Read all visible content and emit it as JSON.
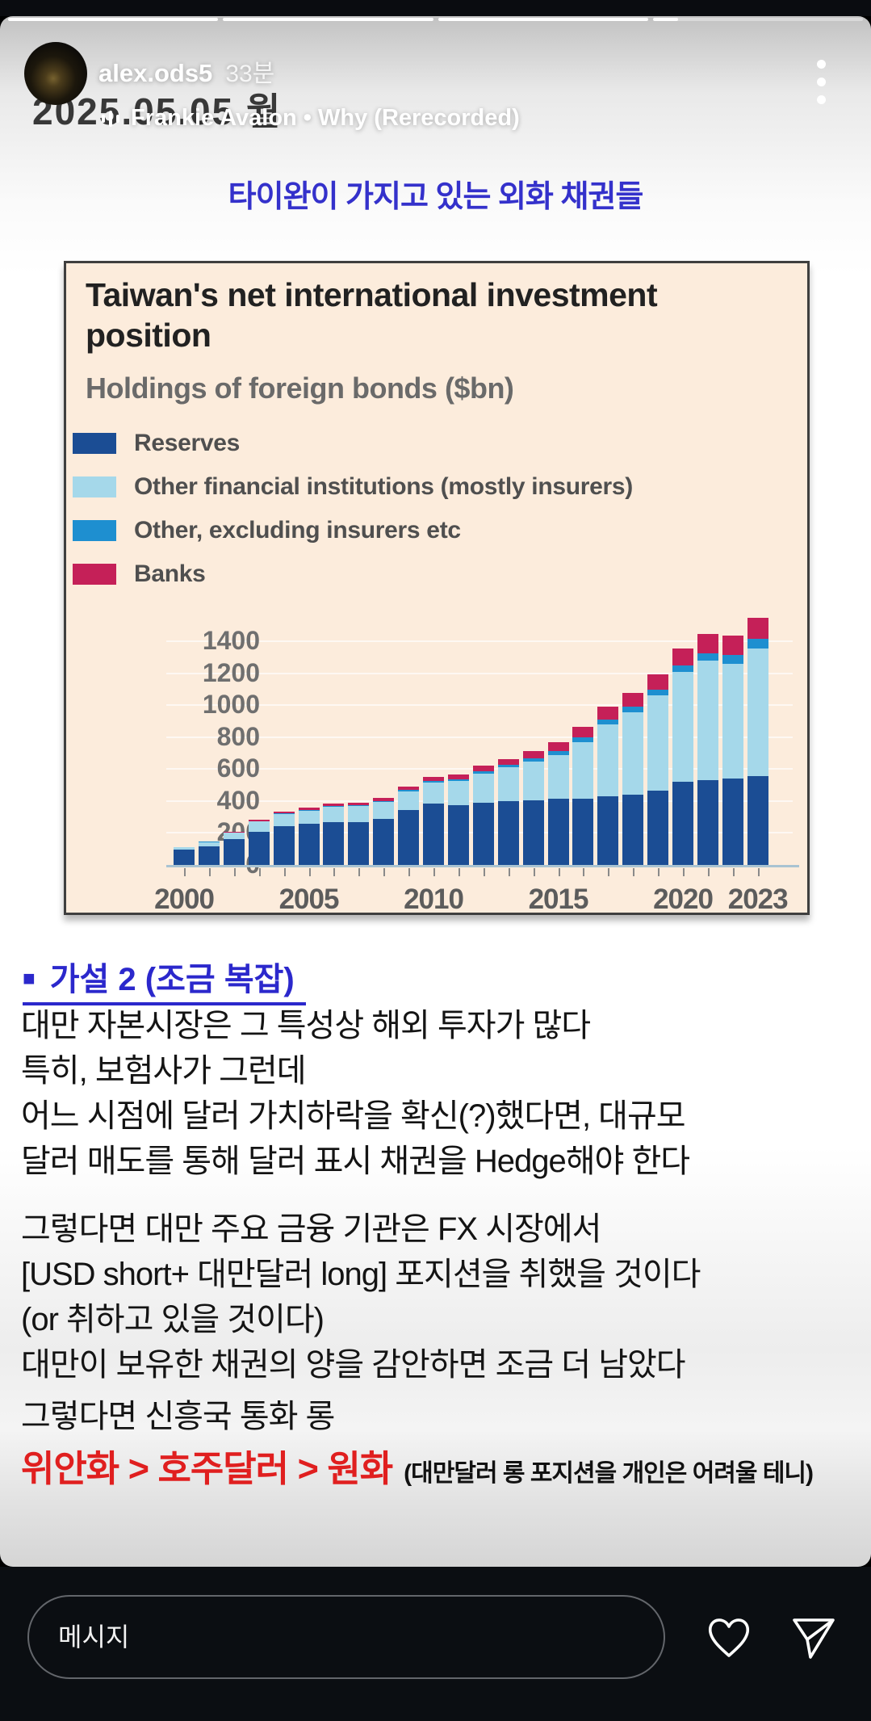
{
  "header": {
    "username": "alex.ods5",
    "time_ago": "33분",
    "music_attribution": "Frankie Avalon • Why (Rerecorded)",
    "progress_segments": [
      1,
      1,
      1,
      0.12
    ],
    "menu_icon": "vertical-three-dots"
  },
  "story": {
    "date_watermark": "2025.05.05 월",
    "title": "타이완이 가지고 있는 외화 채권들",
    "hypothesis_heading": "가설 2 (조금 복잡)",
    "paragraph1": "대만 자본시장은 그 특성상 해외 투자가 많다\n특히, 보험사가 그런데\n어느 시점에 달러 가치하락을 확신(?)했다면, 대규모\n달러 매도를 통해 달러 표시 채권을 Hedge해야 한다",
    "paragraph2": "그렇다면 대만 주요 금융 기관은 FX 시장에서\n[USD short+ 대만달러 long] 포지션을 취했을 것이다\n(or 취하고 있을 것이다)\n대만이 보유한 채권의 양을 감안하면 조금 더 남았다",
    "paragraph3": "그렇다면 신흥국 통화 롱",
    "currency_ranking": "위안화 > 호주달러 > 원화",
    "ranking_note": "(대만달러 롱 포지션을 개인은 어려울 테니)"
  },
  "chart_data": {
    "type": "bar",
    "stacked": true,
    "title": "Taiwan's net international investment position",
    "subtitle": "Holdings of foreign bonds ($bn)",
    "background": "#fcecdc",
    "legend_position": "top-left",
    "x": [
      2000,
      2001,
      2002,
      2003,
      2004,
      2005,
      2006,
      2007,
      2008,
      2009,
      2010,
      2011,
      2012,
      2013,
      2014,
      2015,
      2016,
      2017,
      2018,
      2019,
      2020,
      2021,
      2022,
      2023
    ],
    "series": [
      {
        "name": "Reserves",
        "color": "#1b4d94",
        "values": [
          95,
          118,
          160,
          210,
          245,
          256,
          266,
          270,
          290,
          346,
          385,
          373,
          390,
          398,
          407,
          415,
          415,
          432,
          440,
          465,
          523,
          531,
          540,
          555
        ]
      },
      {
        "name": "Other financial institutions (mostly insurers)",
        "color": "#a5d8ea",
        "values": [
          15,
          25,
          40,
          62,
          75,
          85,
          97,
          98,
          105,
          115,
          130,
          152,
          182,
          212,
          240,
          275,
          355,
          450,
          518,
          595,
          685,
          750,
          720,
          800
        ]
      },
      {
        "name": "Other, excluding insurers etc",
        "color": "#1e8fd0",
        "values": [
          0,
          2,
          3,
          3,
          4,
          5,
          6,
          6,
          7,
          8,
          10,
          12,
          15,
          17,
          20,
          25,
          28,
          30,
          34,
          40,
          42,
          46,
          55,
          60
        ]
      },
      {
        "name": "Banks",
        "color": "#c52058",
        "values": [
          0,
          0,
          7,
          10,
          11,
          14,
          16,
          16,
          18,
          21,
          25,
          28,
          33,
          38,
          48,
          55,
          67,
          78,
          88,
          95,
          105,
          118,
          120,
          135
        ]
      }
    ],
    "yticks": [
      0,
      200,
      400,
      600,
      800,
      1000,
      1200,
      1400
    ],
    "ylim": [
      0,
      1720
    ],
    "xtick_labels": [
      "2000",
      "2005",
      "2010",
      "2015",
      "2020",
      "2023"
    ],
    "xtick_indices": [
      0,
      5,
      10,
      15,
      20,
      23
    ]
  },
  "footer": {
    "message_placeholder": "메시지"
  }
}
